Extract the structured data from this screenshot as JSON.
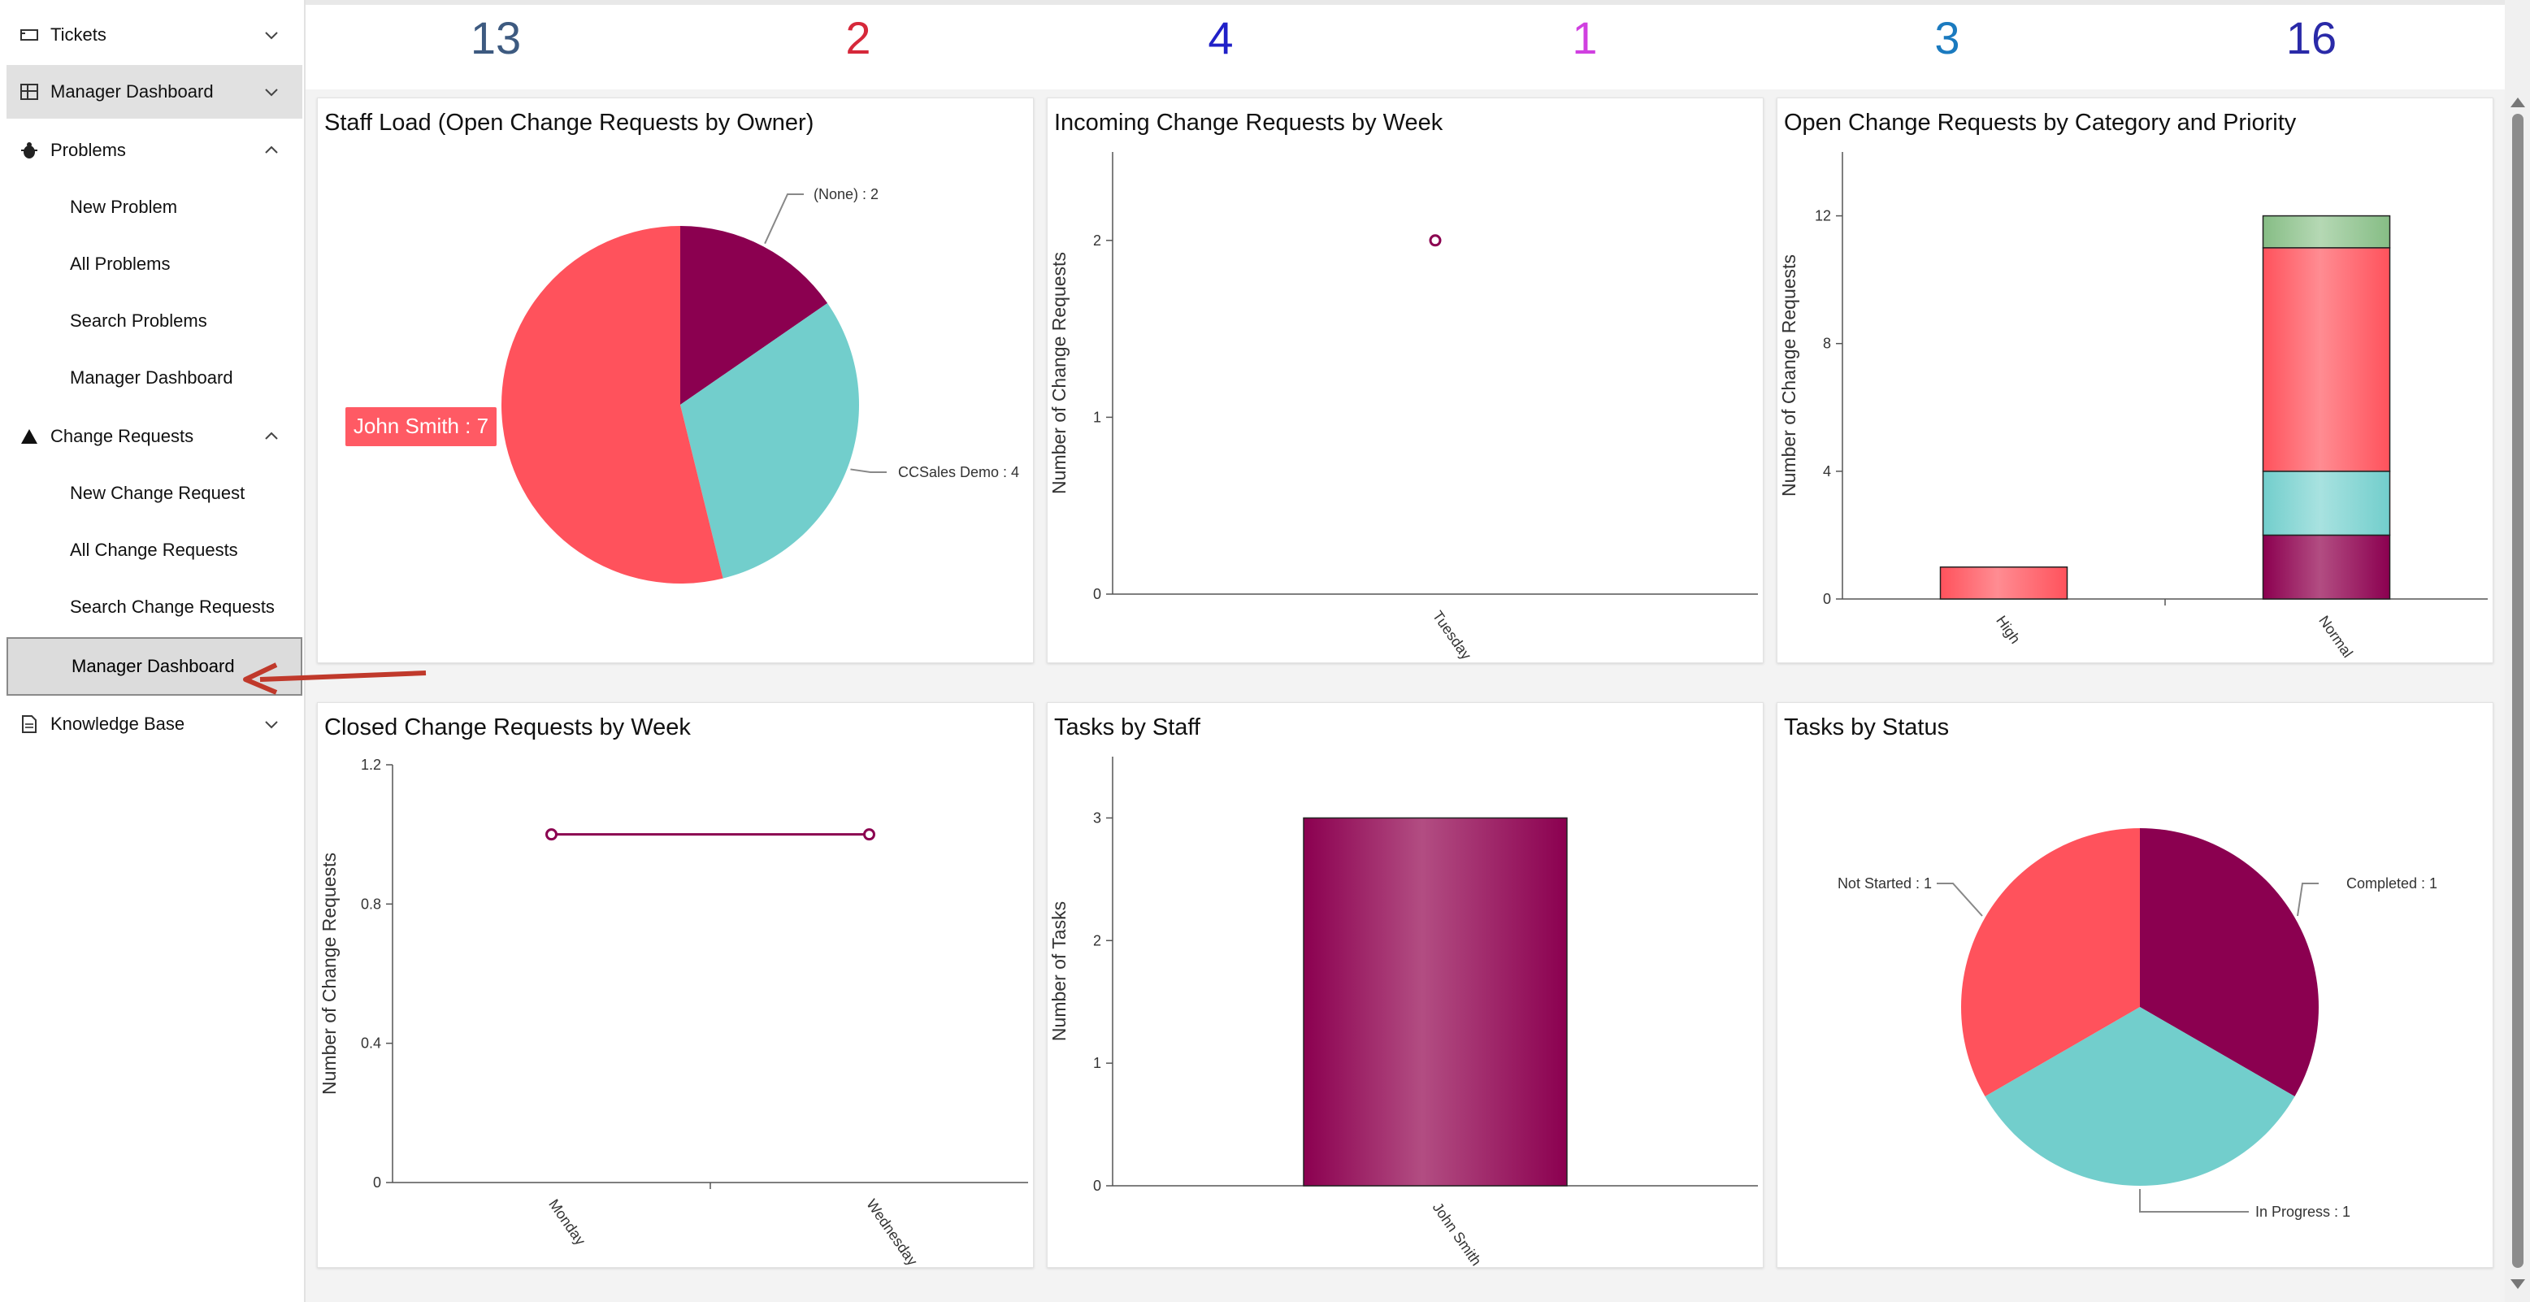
{
  "sidebar": {
    "items": [
      {
        "label": "Tickets",
        "icon": "ticket-icon",
        "chevron": "down"
      },
      {
        "label": "Manager Dashboard",
        "icon": "dashboard-icon",
        "chevron": "down"
      },
      {
        "label": "Problems",
        "icon": "bug-icon",
        "chevron": "up"
      },
      {
        "label": "New Problem"
      },
      {
        "label": "All Problems"
      },
      {
        "label": "Search Problems"
      },
      {
        "label": "Manager Dashboard"
      },
      {
        "label": "Change Requests",
        "icon": "triangle-icon",
        "chevron": "up"
      },
      {
        "label": "New Change Request"
      },
      {
        "label": "All Change Requests"
      },
      {
        "label": "Search Change Requests"
      },
      {
        "label": "Manager Dashboard"
      },
      {
        "label": "Knowledge Base",
        "icon": "document-icon",
        "chevron": "down"
      }
    ]
  },
  "kpis": [
    {
      "value": "13",
      "color": "#3d5a80"
    },
    {
      "value": "2",
      "color": "#d6283a"
    },
    {
      "value": "4",
      "color": "#2020c8"
    },
    {
      "value": "1",
      "color": "#d040e0"
    },
    {
      "value": "3",
      "color": "#1a7abf"
    },
    {
      "value": "16",
      "color": "#2a2aa8"
    }
  ],
  "colors": {
    "red": "#ff525c",
    "teal": "#72cecc",
    "maroon": "#8b0050",
    "green": "#86bd85",
    "callout": "#ff5a64"
  },
  "chart_data": [
    {
      "id": "staff-load",
      "type": "pie",
      "title": "Staff Load (Open Change Requests by Owner)",
      "slices": [
        {
          "label": "(None) : 2",
          "name": "(None)",
          "value": 2,
          "color": "#8b0050"
        },
        {
          "label": "CCSales Demo : 4",
          "name": "CCSales Demo",
          "value": 4,
          "color": "#72cecc"
        },
        {
          "label": "John Smith : 7",
          "name": "John Smith",
          "value": 7,
          "color": "#ff525c"
        }
      ]
    },
    {
      "id": "incoming-week",
      "type": "line",
      "title": "Incoming Change Requests by Week",
      "categories": [
        "Tuesday"
      ],
      "values": [
        2
      ],
      "ylabel": "Number of Change Requests",
      "ylim": [
        0,
        2.5
      ],
      "yticks": [
        "0",
        "1",
        "2"
      ]
    },
    {
      "id": "open-category",
      "type": "bar",
      "stacked": true,
      "title": "Open Change Requests by Category and Priority",
      "categories": [
        "High",
        "Normal"
      ],
      "series": [
        {
          "name": "s1",
          "values": [
            0,
            2
          ],
          "color": "#8b0050"
        },
        {
          "name": "s2",
          "values": [
            0,
            2
          ],
          "color": "#72cecc"
        },
        {
          "name": "s3",
          "values": [
            1,
            7
          ],
          "color": "#ff525c"
        },
        {
          "name": "s4",
          "values": [
            0,
            1
          ],
          "color": "#86bd85"
        }
      ],
      "ylabel": "Number of Change Requests",
      "ylim": [
        0,
        14
      ],
      "yticks": [
        "0",
        "4",
        "8",
        "12"
      ]
    },
    {
      "id": "closed-week",
      "type": "line",
      "title": "Closed Change Requests by Week",
      "categories": [
        "Monday",
        "Wednesday"
      ],
      "values": [
        1,
        1
      ],
      "ylabel": "Number of Change Requests",
      "ylim": [
        0,
        1.2
      ],
      "yticks": [
        "0",
        "0.4",
        "0.8",
        "1.2"
      ]
    },
    {
      "id": "tasks-staff",
      "type": "bar",
      "title": "Tasks by Staff",
      "categories": [
        "John Smith"
      ],
      "values": [
        3
      ],
      "ylabel": "Number of Tasks",
      "ylim": [
        0,
        3.5
      ],
      "yticks": [
        "0",
        "1",
        "2",
        "3"
      ]
    },
    {
      "id": "tasks-status",
      "type": "pie",
      "title": "Tasks by Status",
      "slices": [
        {
          "label": "Completed : 1",
          "name": "Completed",
          "value": 1,
          "color": "#8b0050"
        },
        {
          "label": "In Progress : 1",
          "name": "In Progress",
          "value": 1,
          "color": "#72cecc"
        },
        {
          "label": "Not Started : 1",
          "name": "Not Started",
          "value": 1,
          "color": "#ff525c"
        }
      ]
    }
  ]
}
